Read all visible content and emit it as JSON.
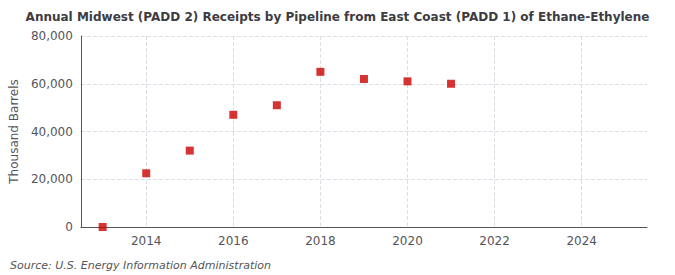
{
  "chart_data": {
    "type": "scatter",
    "title": "Annual Midwest (PADD 2) Receipts by Pipeline from East Coast (PADD 1) of Ethane-Ethylene",
    "ylabel": "Thousand Barrels",
    "source": "Source: U.S. Energy Information Administration",
    "x": [
      2013,
      2014,
      2015,
      2016,
      2017,
      2018,
      2019,
      2020,
      2021
    ],
    "values": [
      0,
      22500,
      32000,
      47000,
      51000,
      65000,
      62000,
      61000,
      60000
    ],
    "color": "#cc0000",
    "marker": "square",
    "xlim": [
      2012.5,
      2025.5
    ],
    "ylim": [
      0,
      80000
    ],
    "xticks": [
      2014,
      2016,
      2018,
      2020,
      2022,
      2024
    ],
    "yticks": [
      0,
      {
        "value": 20000,
        "label": "20,000"
      },
      {
        "value": 40000,
        "label": "40,000"
      },
      {
        "value": 60000,
        "label": "60,000"
      },
      {
        "value": 80000,
        "label": "80,000"
      }
    ],
    "grid": true
  }
}
